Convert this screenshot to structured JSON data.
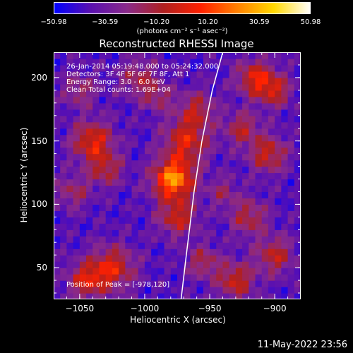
{
  "chart_data": {
    "type": "heatmap",
    "title": "Reconstructed RHESSI Image",
    "xlabel": "Heliocentric X (arcsec)",
    "ylabel": "Heliocentric Y (arcsec)",
    "xlim": [
      -1070,
      -880
    ],
    "ylim": [
      25,
      220
    ],
    "xticks": [
      -1050,
      -1000,
      -950,
      -900
    ],
    "xtick_labels": [
      "−1050",
      "−1000",
      "−950",
      "−900"
    ],
    "yticks": [
      50,
      100,
      150,
      200
    ],
    "ytick_labels": [
      "50",
      "100",
      "150",
      "200"
    ],
    "colorbar": {
      "min": -50.98,
      "max": 50.98,
      "tick_values": [
        -50.98,
        -30.59,
        -10.2,
        10.2,
        30.59,
        50.98
      ],
      "tick_labels": [
        "−50.98",
        "−30.59",
        "−10.20",
        "10.20",
        "30.59",
        "50.98"
      ],
      "units_label": "(photons cm⁻² s⁻¹ asec⁻²)",
      "colormap": [
        "#0000ff",
        "#5a10b0",
        "#8a2a8a",
        "#b02020",
        "#ff2000",
        "#ff8000",
        "#ffd800",
        "#ffffff"
      ]
    },
    "peak": {
      "x": -978,
      "y": 120
    },
    "annotations": [
      "26-Jan-2014 05:19:48.000 to 05:24:32.000",
      "Detectors: 3F 4F 5F 6F 7F 8F, Att 1",
      "Energy Range: 3.0 - 6.0 keV",
      "Clean     Total counts: 1.69E+04"
    ],
    "peak_label": "Position of Peak = [-978,120]",
    "limb_curve": [
      {
        "x": -972,
        "y": 25
      },
      {
        "x": -968,
        "y": 60
      },
      {
        "x": -962,
        "y": 110
      },
      {
        "x": -956,
        "y": 150
      },
      {
        "x": -948,
        "y": 190
      },
      {
        "x": -940,
        "y": 220
      }
    ]
  },
  "date_stamp": "11-May-2022 23:56"
}
